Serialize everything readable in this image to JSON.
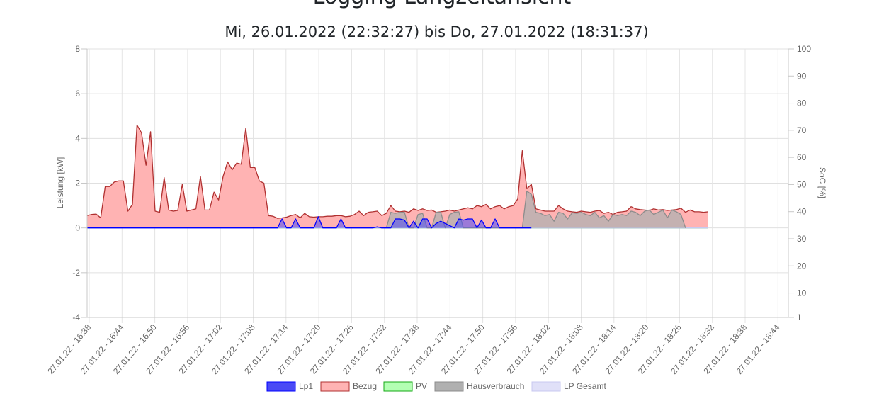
{
  "page": {
    "title": "Logging Langzeitansicht",
    "subtitle": "Mi, 26.01.2022 (22:32:27) bis Do, 27.01.2022 (18:31:37)"
  },
  "chart_data": {
    "type": "area",
    "x_labels": [
      "27.01.22 - 16:38",
      "27.01.22 - 16:44",
      "27.01.22 - 16:50",
      "27.01.22 - 16:56",
      "27.01.22 - 17:02",
      "27.01.22 - 17:08",
      "27.01.22 - 17:14",
      "27.01.22 - 17:20",
      "27.01.22 - 17:26",
      "27.01.22 - 17:32",
      "27.01.22 - 17:38",
      "27.01.22 - 17:44",
      "27.01.22 - 17:50",
      "27.01.22 - 17:56",
      "27.01.22 - 18:02",
      "27.01.22 - 18:08",
      "27.01.22 - 18:14",
      "27.01.22 - 18:20",
      "27.01.22 - 18:26",
      "27.01.22 - 18:32",
      "27.01.22 - 18:38",
      "27.01.22 - 18:44"
    ],
    "y_left": {
      "label": "Leistung [kW]",
      "min": -4,
      "max": 8,
      "ticks": [
        -4,
        -2,
        0,
        2,
        4,
        6,
        8
      ]
    },
    "y_right": {
      "label": "SoC [%]",
      "min": 1,
      "max": 100,
      "ticks": [
        1,
        10,
        20,
        30,
        40,
        50,
        60,
        70,
        80,
        90,
        100
      ]
    },
    "grid": true,
    "legend_position": "bottom",
    "series": [
      {
        "name": "Lp1",
        "color": "#0000ff",
        "fill": "#4a4af5",
        "points": [
          [
            0,
            0
          ],
          [
            42,
            0
          ],
          [
            43,
            0.4
          ],
          [
            44,
            0
          ],
          [
            45,
            0
          ],
          [
            46,
            0.4
          ],
          [
            47,
            0
          ],
          [
            50,
            0
          ],
          [
            51,
            0.5
          ],
          [
            52,
            0
          ],
          [
            55,
            0
          ],
          [
            56,
            0.4
          ],
          [
            57,
            0
          ],
          [
            63,
            0
          ],
          [
            64,
            0.05
          ],
          [
            65,
            0
          ],
          [
            67,
            0
          ],
          [
            68,
            0.4
          ],
          [
            69,
            0.4
          ],
          [
            70,
            0.35
          ],
          [
            71,
            0
          ],
          [
            72,
            0.3
          ],
          [
            73,
            0
          ],
          [
            74,
            0.4
          ],
          [
            75,
            0.4
          ],
          [
            76,
            0
          ],
          [
            77,
            0.2
          ],
          [
            78,
            0.3
          ],
          [
            79,
            0.2
          ],
          [
            80,
            0.1
          ],
          [
            81,
            0
          ],
          [
            82,
            0.4
          ],
          [
            83,
            0.35
          ],
          [
            84,
            0.4
          ],
          [
            85,
            0.4
          ],
          [
            86,
            0
          ],
          [
            87,
            0.35
          ],
          [
            88,
            0
          ],
          [
            89,
            0
          ],
          [
            90,
            0.4
          ],
          [
            91,
            0
          ],
          [
            92,
            0
          ],
          [
            93,
            0
          ],
          [
            94,
            0
          ],
          [
            95,
            0
          ],
          [
            96,
            0
          ],
          [
            97,
            0
          ],
          [
            98,
            0
          ]
        ]
      },
      {
        "name": "Bezug",
        "color": "#b03030",
        "fill": "#ffb3b3",
        "points": [
          [
            0,
            0.55
          ],
          [
            1,
            0.6
          ],
          [
            2,
            0.62
          ],
          [
            3,
            0.45
          ],
          [
            4,
            1.85
          ],
          [
            5,
            1.85
          ],
          [
            6,
            2.05
          ],
          [
            7,
            2.1
          ],
          [
            8,
            2.1
          ],
          [
            9,
            0.75
          ],
          [
            10,
            1.05
          ],
          [
            11,
            4.6
          ],
          [
            12,
            4.25
          ],
          [
            13,
            2.8
          ],
          [
            14,
            4.3
          ],
          [
            15,
            0.75
          ],
          [
            16,
            0.7
          ],
          [
            17,
            2.25
          ],
          [
            18,
            0.8
          ],
          [
            19,
            0.75
          ],
          [
            20,
            0.78
          ],
          [
            21,
            1.95
          ],
          [
            22,
            0.75
          ],
          [
            23,
            0.8
          ],
          [
            24,
            0.85
          ],
          [
            25,
            2.3
          ],
          [
            26,
            0.8
          ],
          [
            27,
            0.8
          ],
          [
            28,
            1.6
          ],
          [
            29,
            1.25
          ],
          [
            30,
            2.3
          ],
          [
            31,
            2.95
          ],
          [
            32,
            2.6
          ],
          [
            33,
            2.9
          ],
          [
            34,
            2.85
          ],
          [
            35,
            4.45
          ],
          [
            36,
            2.7
          ],
          [
            37,
            2.7
          ],
          [
            38,
            2.1
          ],
          [
            39,
            2.0
          ],
          [
            40,
            0.55
          ],
          [
            41,
            0.52
          ],
          [
            42,
            0.43
          ],
          [
            43,
            0.45
          ],
          [
            44,
            0.48
          ],
          [
            45,
            0.55
          ],
          [
            46,
            0.6
          ],
          [
            47,
            0.45
          ],
          [
            48,
            0.65
          ],
          [
            49,
            0.5
          ],
          [
            50,
            0.48
          ],
          [
            51,
            0.5
          ],
          [
            52,
            0.5
          ],
          [
            53,
            0.52
          ],
          [
            54,
            0.52
          ],
          [
            55,
            0.55
          ],
          [
            56,
            0.55
          ],
          [
            57,
            0.5
          ],
          [
            58,
            0.52
          ],
          [
            59,
            0.6
          ],
          [
            60,
            0.75
          ],
          [
            61,
            0.55
          ],
          [
            62,
            0.7
          ],
          [
            63,
            0.72
          ],
          [
            64,
            0.75
          ],
          [
            65,
            0.55
          ],
          [
            66,
            0.65
          ],
          [
            67,
            1.0
          ],
          [
            68,
            0.75
          ],
          [
            69,
            0.72
          ],
          [
            70,
            0.75
          ],
          [
            71,
            0.7
          ],
          [
            72,
            0.85
          ],
          [
            73,
            0.78
          ],
          [
            74,
            0.85
          ],
          [
            75,
            0.78
          ],
          [
            76,
            0.8
          ],
          [
            77,
            0.7
          ],
          [
            78,
            0.72
          ],
          [
            79,
            0.75
          ],
          [
            80,
            0.8
          ],
          [
            81,
            0.75
          ],
          [
            82,
            0.8
          ],
          [
            83,
            0.85
          ],
          [
            84,
            0.9
          ],
          [
            85,
            0.85
          ],
          [
            86,
            1.0
          ],
          [
            87,
            0.95
          ],
          [
            88,
            1.05
          ],
          [
            89,
            0.85
          ],
          [
            90,
            0.95
          ],
          [
            91,
            1.0
          ],
          [
            92,
            0.85
          ],
          [
            93,
            0.95
          ],
          [
            94,
            1.0
          ],
          [
            95,
            1.3
          ],
          [
            96,
            3.45
          ],
          [
            97,
            1.75
          ],
          [
            98,
            1.95
          ],
          [
            99,
            0.85
          ],
          [
            100,
            0.8
          ],
          [
            101,
            0.75
          ],
          [
            102,
            0.75
          ],
          [
            103,
            0.75
          ],
          [
            104,
            1.0
          ],
          [
            105,
            0.85
          ],
          [
            106,
            0.75
          ],
          [
            107,
            0.72
          ],
          [
            108,
            0.7
          ],
          [
            109,
            0.75
          ],
          [
            110,
            0.72
          ],
          [
            111,
            0.7
          ],
          [
            112,
            0.75
          ],
          [
            113,
            0.78
          ],
          [
            114,
            0.65
          ],
          [
            115,
            0.7
          ],
          [
            116,
            0.6
          ],
          [
            117,
            0.7
          ],
          [
            118,
            0.72
          ],
          [
            119,
            0.75
          ],
          [
            120,
            0.95
          ],
          [
            121,
            0.85
          ],
          [
            122,
            0.82
          ],
          [
            123,
            0.8
          ],
          [
            124,
            0.78
          ],
          [
            125,
            0.85
          ],
          [
            126,
            0.8
          ],
          [
            127,
            0.82
          ],
          [
            128,
            0.78
          ],
          [
            129,
            0.8
          ],
          [
            130,
            0.82
          ],
          [
            131,
            0.88
          ],
          [
            132,
            0.7
          ],
          [
            133,
            0.8
          ],
          [
            134,
            0.72
          ],
          [
            135,
            0.72
          ],
          [
            136,
            0.7
          ],
          [
            137,
            0.72
          ]
        ]
      },
      {
        "name": "PV",
        "color": "#16a916",
        "fill": "#b3ffb3",
        "points": [
          [
            0,
            0
          ],
          [
            137,
            0
          ]
        ]
      },
      {
        "name": "Hausverbrauch",
        "color": "#8c8c8c",
        "fill": "#b0b0b0",
        "points": [
          [
            66,
            0
          ],
          [
            67,
            0.7
          ],
          [
            68,
            0.65
          ],
          [
            69,
            0.7
          ],
          [
            70,
            0.7
          ],
          [
            71,
            0
          ],
          [
            72,
            0
          ],
          [
            73,
            0.6
          ],
          [
            74,
            0.65
          ],
          [
            75,
            0
          ],
          [
            76,
            0
          ],
          [
            77,
            0.7
          ],
          [
            78,
            0.7
          ],
          [
            79,
            0
          ],
          [
            80,
            0.6
          ],
          [
            81,
            0.7
          ],
          [
            82,
            0.72
          ],
          [
            83,
            0
          ],
          [
            96,
            0
          ],
          [
            97,
            1.65
          ],
          [
            98,
            1.5
          ],
          [
            99,
            0.7
          ],
          [
            100,
            0.65
          ],
          [
            101,
            0.55
          ],
          [
            102,
            0.6
          ],
          [
            103,
            0.3
          ],
          [
            104,
            0.7
          ],
          [
            105,
            0.65
          ],
          [
            106,
            0.4
          ],
          [
            107,
            0.68
          ],
          [
            108,
            0.65
          ],
          [
            109,
            0.7
          ],
          [
            110,
            0.6
          ],
          [
            111,
            0.55
          ],
          [
            112,
            0.7
          ],
          [
            113,
            0.45
          ],
          [
            114,
            0.55
          ],
          [
            115,
            0.3
          ],
          [
            116,
            0.6
          ],
          [
            117,
            0.55
          ],
          [
            118,
            0.6
          ],
          [
            119,
            0.55
          ],
          [
            120,
            0.75
          ],
          [
            121,
            0.7
          ],
          [
            122,
            0.55
          ],
          [
            123,
            0.75
          ],
          [
            124,
            0.8
          ],
          [
            125,
            0.6
          ],
          [
            126,
            0.7
          ],
          [
            127,
            0.8
          ],
          [
            128,
            0.45
          ],
          [
            129,
            0.8
          ],
          [
            130,
            0.72
          ],
          [
            131,
            0.6
          ],
          [
            132,
            0
          ]
        ]
      },
      {
        "name": "LP Gesamt",
        "color": "#c8c8f0",
        "fill": "#e0e0f8",
        "points": [
          [
            0,
            0
          ],
          [
            137,
            0
          ]
        ]
      }
    ]
  }
}
